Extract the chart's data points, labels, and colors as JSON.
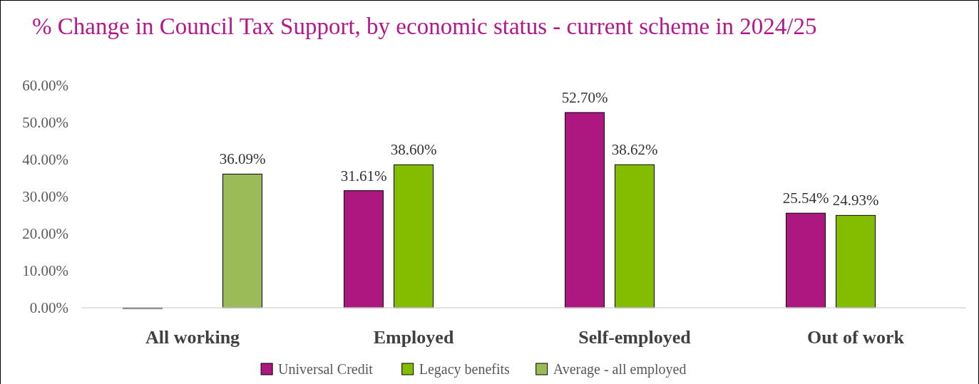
{
  "chart_data": {
    "type": "bar",
    "title": "% Change in Council Tax Support, by economic status - current scheme in 2024/25",
    "categories": [
      "All working",
      "Employed",
      "Self-employed",
      "Out of work"
    ],
    "series": [
      {
        "name": "Universal Credit",
        "color": "#ac1780",
        "values": [
          0,
          31.61,
          52.7,
          25.54
        ],
        "value_labels": [
          null,
          "31.61%",
          "52.70%",
          "25.54%"
        ]
      },
      {
        "name": "Legacy benefits",
        "color": "#84bd00",
        "values": [
          null,
          38.6,
          38.62,
          24.93
        ],
        "value_labels": [
          null,
          "38.60%",
          "38.62%",
          "24.93%"
        ]
      },
      {
        "name": "Average - all employed",
        "color": "#9bbb59",
        "values": [
          36.09,
          null,
          null,
          null
        ],
        "value_labels": [
          "36.09%",
          null,
          null,
          null
        ]
      }
    ],
    "ylim": [
      0,
      60
    ],
    "yticks": [
      {
        "value": 0,
        "label": "0.00%"
      },
      {
        "value": 10,
        "label": "10.00%"
      },
      {
        "value": 20,
        "label": "20.00%"
      },
      {
        "value": 30,
        "label": "30.00%"
      },
      {
        "value": 40,
        "label": "40.00%"
      },
      {
        "value": 50,
        "label": "50.00%"
      },
      {
        "value": 60,
        "label": "60.00%"
      }
    ],
    "grid": false,
    "legend": "bottom"
  }
}
